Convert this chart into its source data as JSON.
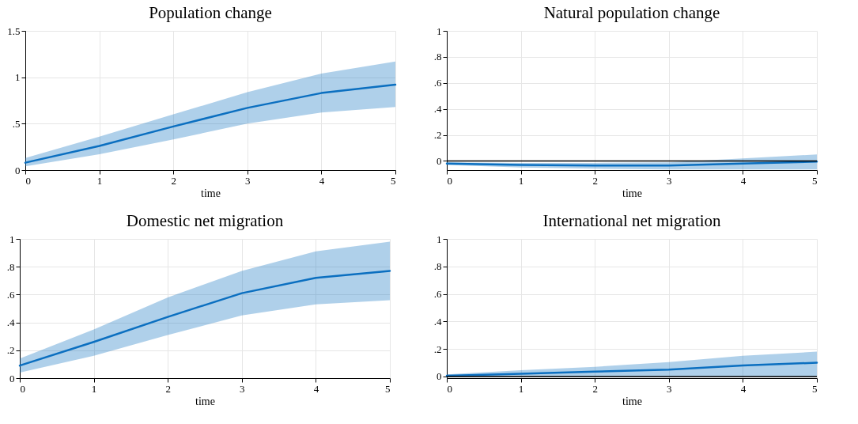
{
  "chart_data": [
    {
      "type": "line",
      "title": "Population change",
      "xlabel": "time",
      "x": [
        0,
        1,
        2,
        3,
        4,
        5
      ],
      "xlim": [
        0,
        5
      ],
      "xticks": [
        0,
        1,
        2,
        3,
        4,
        5
      ],
      "ylim": [
        0,
        1.5
      ],
      "yticks": [
        0,
        {
          "value": 0.5,
          "label": ".5"
        },
        1,
        1.5
      ],
      "grid": true,
      "series": [
        {
          "color": "#0b6fc0",
          "values": [
            0.08,
            0.26,
            0.47,
            0.67,
            0.83,
            0.92
          ],
          "lower": [
            0.04,
            0.17,
            0.33,
            0.5,
            0.62,
            0.68
          ],
          "upper": [
            0.13,
            0.36,
            0.6,
            0.84,
            1.04,
            1.17
          ]
        }
      ]
    },
    {
      "type": "line",
      "title": "Natural population change",
      "xlabel": "time",
      "x": [
        0,
        1,
        2,
        3,
        4,
        5
      ],
      "xlim": [
        0,
        5
      ],
      "xticks": [
        0,
        1,
        2,
        3,
        4,
        5
      ],
      "ylim": [
        -0.07,
        1
      ],
      "yticks": [
        0,
        {
          "value": 0.2,
          "label": ".2"
        },
        {
          "value": 0.4,
          "label": ".4"
        },
        {
          "value": 0.6,
          "label": ".6"
        },
        {
          "value": 0.8,
          "label": ".8"
        },
        1
      ],
      "grid": true,
      "ref_lines": [
        {
          "axis": "y",
          "value": 0,
          "color": "#000000"
        }
      ],
      "series": [
        {
          "color": "#0b6fc0",
          "values": [
            -0.02,
            -0.03,
            -0.035,
            -0.035,
            -0.02,
            -0.005
          ],
          "lower": [
            -0.03,
            -0.05,
            -0.06,
            -0.065,
            -0.065,
            -0.065
          ],
          "upper": [
            -0.01,
            -0.015,
            -0.015,
            -0.01,
            0.02,
            0.05
          ]
        }
      ]
    },
    {
      "type": "line",
      "title": "Domestic net migration",
      "xlabel": "time",
      "x": [
        0,
        1,
        2,
        3,
        4,
        5
      ],
      "xlim": [
        0,
        5
      ],
      "xticks": [
        0,
        1,
        2,
        3,
        4,
        5
      ],
      "ylim": [
        0,
        1
      ],
      "yticks": [
        0,
        {
          "value": 0.2,
          "label": ".2"
        },
        {
          "value": 0.4,
          "label": ".4"
        },
        {
          "value": 0.6,
          "label": ".6"
        },
        {
          "value": 0.8,
          "label": ".8"
        },
        1
      ],
      "grid": true,
      "series": [
        {
          "color": "#0b6fc0",
          "values": [
            0.09,
            0.26,
            0.44,
            0.61,
            0.72,
            0.77
          ],
          "lower": [
            0.04,
            0.16,
            0.31,
            0.45,
            0.53,
            0.56
          ],
          "upper": [
            0.14,
            0.35,
            0.58,
            0.77,
            0.91,
            0.98
          ]
        }
      ]
    },
    {
      "type": "line",
      "title": "International net migration",
      "xlabel": "time",
      "x": [
        0,
        1,
        2,
        3,
        4,
        5
      ],
      "xlim": [
        0,
        5
      ],
      "xticks": [
        0,
        1,
        2,
        3,
        4,
        5
      ],
      "ylim": [
        -0.012,
        1
      ],
      "yticks": [
        0,
        {
          "value": 0.2,
          "label": ".2"
        },
        {
          "value": 0.4,
          "label": ".4"
        },
        {
          "value": 0.6,
          "label": ".6"
        },
        {
          "value": 0.8,
          "label": ".8"
        },
        1
      ],
      "grid": true,
      "ref_lines": [
        {
          "axis": "y",
          "value": 0,
          "color": "#000000"
        }
      ],
      "series": [
        {
          "color": "#0b6fc0",
          "values": [
            0.005,
            0.02,
            0.035,
            0.05,
            0.08,
            0.1
          ],
          "lower": [
            -0.005,
            -0.005,
            -0.005,
            -0.005,
            -0.005,
            -0.005
          ],
          "upper": [
            0.015,
            0.045,
            0.07,
            0.105,
            0.15,
            0.18
          ]
        }
      ]
    }
  ]
}
